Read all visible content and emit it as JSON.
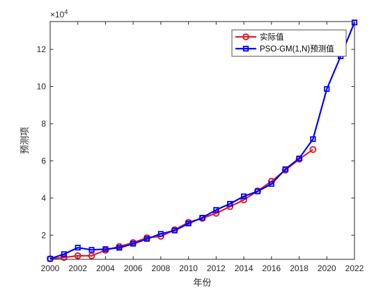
{
  "chart_data": {
    "type": "line",
    "xlabel": "年份",
    "ylabel": "预测项",
    "y_exponent_base": "×10",
    "y_exponent_power": "4",
    "xlim": [
      2000,
      2022
    ],
    "ylim": [
      7000,
      135000
    ],
    "x_ticks": [
      2000,
      2002,
      2004,
      2006,
      2008,
      2010,
      2012,
      2014,
      2016,
      2018,
      2020,
      2022
    ],
    "y_ticks": [
      20000,
      40000,
      60000,
      80000,
      100000,
      120000
    ],
    "y_tick_labels": [
      "2",
      "4",
      "6",
      "8",
      "10",
      "12"
    ],
    "grid": false,
    "legend_position": "top-right",
    "series": [
      {
        "name": "实际值",
        "color": "#d9232a",
        "marker": "circle",
        "x": [
          2000,
          2001,
          2002,
          2003,
          2004,
          2005,
          2006,
          2007,
          2008,
          2009,
          2010,
          2011,
          2012,
          2013,
          2014,
          2015,
          2016,
          2017,
          2018,
          2019
        ],
        "values": [
          7300,
          8000,
          8900,
          8900,
          11900,
          13900,
          16000,
          18600,
          19400,
          22900,
          26900,
          29100,
          31800,
          35400,
          39000,
          43800,
          49000,
          55000,
          60900,
          66100
        ]
      },
      {
        "name": "PSO-GM(1,N)预测值",
        "color": "#0000ff",
        "marker": "square",
        "x": [
          2000,
          2001,
          2002,
          2003,
          2004,
          2005,
          2006,
          2007,
          2008,
          2009,
          2010,
          2011,
          2012,
          2013,
          2014,
          2015,
          2016,
          2017,
          2018,
          2019,
          2020,
          2021,
          2022
        ],
        "values": [
          7300,
          9800,
          13300,
          12100,
          12500,
          13200,
          15400,
          18000,
          20700,
          22500,
          26300,
          29400,
          33600,
          36900,
          40900,
          43600,
          47600,
          55500,
          61300,
          71700,
          98700,
          116300,
          134500
        ]
      }
    ]
  }
}
